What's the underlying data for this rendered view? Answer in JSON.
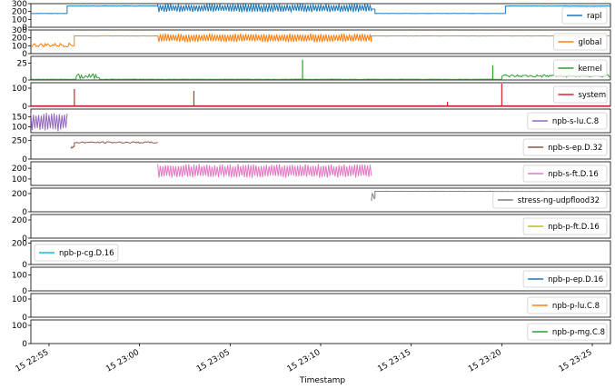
{
  "chart_data": {
    "type": "line",
    "xlabel": "Timestamp",
    "x_ticks": [
      "15 22:55",
      "15 23:00",
      "15 23:05",
      "15 23:10",
      "15 23:15",
      "15 23:20",
      "15 23:25"
    ],
    "x_range_minutes": [
      -1,
      31
    ],
    "panels": [
      {
        "name": "rapl",
        "color": "#1f77b4",
        "ylim": [
          0,
          300
        ],
        "yticks": [
          0,
          100,
          200,
          300
        ],
        "legend": "top-right",
        "segments": [
          {
            "t0": -1.0,
            "t1": 1.0,
            "base": 175,
            "amp": 10,
            "mode": "flat"
          },
          {
            "t0": 1.0,
            "t1": 2.0,
            "base": 270,
            "amp": 6,
            "mode": "flat"
          },
          {
            "t0": 2.0,
            "t1": 6.0,
            "base": 270,
            "amp": 10,
            "mode": "flat"
          },
          {
            "t0": 6.0,
            "t1": 17.8,
            "base": 245,
            "amp": 55,
            "mode": "osc"
          },
          {
            "t0": 17.8,
            "t1": 18.0,
            "base": 230,
            "amp": 5,
            "mode": "flat"
          },
          {
            "t0": 18.0,
            "t1": 25.2,
            "base": 175,
            "amp": 5,
            "mode": "flat"
          },
          {
            "t0": 25.2,
            "t1": 30.2,
            "base": 270,
            "amp": 10,
            "mode": "flat"
          },
          {
            "t0": 30.2,
            "t1": 35.0,
            "base": 270,
            "amp": 5,
            "mode": "flat"
          },
          {
            "t0": 35.2,
            "t1": 35.6,
            "base": 175,
            "amp": 40,
            "mode": "noise"
          },
          {
            "t0": 35.6,
            "t1": 50.0,
            "base": 265,
            "amp": 25,
            "mode": "spiky"
          },
          {
            "t0": 50.0,
            "t1": 55.0,
            "base": 160,
            "amp": 8,
            "mode": "flat"
          },
          {
            "t0": 55.0,
            "t1": 61.0,
            "base": 40,
            "amp": 8,
            "mode": "flat"
          }
        ]
      },
      {
        "name": "global",
        "color": "#ff7f0e",
        "ylim": [
          0,
          300
        ],
        "yticks": [
          0,
          100,
          200,
          300
        ],
        "legend": "top-right",
        "segments": [
          {
            "t0": -1.0,
            "t1": 1.4,
            "base": 110,
            "amp": 25,
            "mode": "noise"
          },
          {
            "t0": 1.4,
            "t1": 2.0,
            "base": 225,
            "amp": 5,
            "mode": "flat"
          },
          {
            "t0": 2.0,
            "t1": 6.0,
            "base": 225,
            "amp": 8,
            "mode": "flat"
          },
          {
            "t0": 6.0,
            "t1": 17.8,
            "base": 200,
            "amp": 55,
            "mode": "osc"
          },
          {
            "t0": 17.8,
            "t1": 25.2,
            "base": 225,
            "amp": 5,
            "mode": "flat"
          },
          {
            "t0": 25.2,
            "t1": 35.0,
            "base": 225,
            "amp": 5,
            "mode": "flat"
          },
          {
            "t0": 35.0,
            "t1": 35.6,
            "base": 120,
            "amp": 40,
            "mode": "noise"
          },
          {
            "t0": 35.6,
            "t1": 50.0,
            "base": 230,
            "amp": 35,
            "mode": "spiky"
          },
          {
            "t0": 50.0,
            "t1": 55.0,
            "base": 120,
            "amp": 10,
            "mode": "flat"
          },
          {
            "t0": 55.0,
            "t1": 61.0,
            "base": 70,
            "amp": 8,
            "mode": "flat"
          }
        ]
      },
      {
        "name": "kernel",
        "color": "#2ca02c",
        "ylim": [
          0,
          35
        ],
        "yticks": [
          0,
          25
        ],
        "legend": "top-right",
        "segments": [
          {
            "t0": -1.0,
            "t1": 1.5,
            "base": 1,
            "amp": 1,
            "mode": "flat"
          },
          {
            "t0": 1.5,
            "t1": 2.8,
            "base": 5,
            "amp": 4,
            "mode": "noise"
          },
          {
            "t0": 2.8,
            "t1": 25.0,
            "base": 1,
            "amp": 1,
            "mode": "flat"
          },
          {
            "t0": 25.0,
            "t1": 35.3,
            "base": 6,
            "amp": 2,
            "mode": "noise"
          },
          {
            "t0": 35.3,
            "t1": 35.8,
            "base": 15,
            "amp": 18,
            "mode": "noise"
          },
          {
            "t0": 35.8,
            "t1": 61.0,
            "base": 1,
            "amp": 1,
            "mode": "flat"
          }
        ]
      },
      {
        "name": "system",
        "color": "#d62728",
        "ylim": [
          0,
          130
        ],
        "yticks": [
          0,
          100
        ],
        "legend": "top-right",
        "segments": [
          {
            "t0": -1.0,
            "t1": 61.0,
            "base": 3,
            "amp": 1,
            "mode": "flat"
          }
        ]
      },
      {
        "name": "npb-s-lu.C.8",
        "color": "#9467bd",
        "ylim": [
          70,
          190
        ],
        "yticks": [
          100,
          150
        ],
        "legend": "top-right",
        "segments": [
          {
            "t0": -1.0,
            "t1": 1.0,
            "base": 125,
            "amp": 50,
            "mode": "osc"
          }
        ]
      },
      {
        "name": "npb-s-ep.D.32",
        "color": "#8c564b",
        "ylim": [
          0,
          320
        ],
        "yticks": [
          0,
          250
        ],
        "legend": "top-right",
        "segments": [
          {
            "t0": 1.2,
            "t1": 1.4,
            "base": 150,
            "amp": 30,
            "mode": "noise"
          },
          {
            "t0": 1.4,
            "t1": 6.0,
            "base": 225,
            "amp": 10,
            "mode": "noise"
          }
        ]
      },
      {
        "name": "npb-s-ft.D.16",
        "color": "#e377c2",
        "ylim": [
          40,
          260
        ],
        "yticks": [
          100,
          200
        ],
        "legend": "right",
        "segments": [
          {
            "t0": 6.0,
            "t1": 17.8,
            "base": 175,
            "amp": 65,
            "mode": "osc"
          }
        ]
      },
      {
        "name": "stress-ng-udpflood32",
        "color": "#7f7f7f",
        "ylim": [
          0,
          260
        ],
        "yticks": [
          0,
          200
        ],
        "legend": "right",
        "segments": [
          {
            "t0": 17.8,
            "t1": 18.0,
            "base": 120,
            "amp": 90,
            "mode": "noise"
          },
          {
            "t0": 18.0,
            "t1": 35.0,
            "base": 225,
            "amp": 5,
            "mode": "flat"
          }
        ]
      },
      {
        "name": "npb-p-ft.D.16",
        "color": "#bcbd22",
        "ylim": [
          0,
          260
        ],
        "yticks": [
          0,
          200
        ],
        "legend": "top-right",
        "segments": [
          {
            "t0": 35.0,
            "t1": 55.0,
            "base": 120,
            "amp": 35,
            "mode": "spiky"
          }
        ]
      },
      {
        "name": "npb-p-cg.D.16",
        "color": "#17becf",
        "ylim": [
          0,
          220
        ],
        "yticks": [
          0,
          200
        ],
        "legend": "top-left",
        "segments": [
          {
            "t0": 35.0,
            "t1": 35.5,
            "base": 20,
            "amp": 15,
            "mode": "noise"
          },
          {
            "t0": 35.5,
            "t1": 40.0,
            "base": 55,
            "amp": 15,
            "mode": "noise"
          },
          {
            "t0": 40.0,
            "t1": 50.0,
            "base": 110,
            "amp": 20,
            "mode": "spiky"
          },
          {
            "t0": 50.0,
            "t1": 55.0,
            "base": 190,
            "amp": 6,
            "mode": "flat"
          },
          {
            "t0": 55.0,
            "t1": 61.0,
            "base": 70,
            "amp": 5,
            "mode": "flat"
          }
        ]
      },
      {
        "name": "npb-p-ep.D.16",
        "color": "#1f77b4",
        "ylim": [
          0,
          150
        ],
        "yticks": [
          0,
          100
        ],
        "legend": "right",
        "segments": [
          {
            "t0": 35.0,
            "t1": 35.5,
            "base": 30,
            "amp": 20,
            "mode": "noise"
          },
          {
            "t0": 35.5,
            "t1": 46.0,
            "base": 90,
            "amp": 20,
            "mode": "noise"
          },
          {
            "t0": 46.0,
            "t1": 47.0,
            "base": 40,
            "amp": 40,
            "mode": "noise"
          }
        ]
      },
      {
        "name": "npb-p-lu.C.8",
        "color": "#ff7f0e",
        "ylim": [
          0,
          130
        ],
        "yticks": [
          0,
          100
        ],
        "legend": "right",
        "segments": [
          {
            "t0": 35.0,
            "t1": 36.0,
            "base": 80,
            "amp": 40,
            "mode": "noise"
          },
          {
            "t0": 36.0,
            "t1": 40.0,
            "base": 40,
            "amp": 12,
            "mode": "noise"
          }
        ]
      },
      {
        "name": "npb-p-mg.C.8",
        "color": "#2ca02c",
        "ylim": [
          0,
          130
        ],
        "yticks": [
          0,
          100
        ],
        "legend": "right",
        "segments": [
          {
            "t0": 35.0,
            "t1": 35.6,
            "base": 60,
            "amp": 40,
            "mode": "noise"
          }
        ]
      }
    ],
    "spikes": [
      {
        "panel": "kernel",
        "t": 14.0,
        "v": 30
      },
      {
        "panel": "kernel",
        "t": 24.5,
        "v": 22
      },
      {
        "panel": "kernel",
        "t": 35.4,
        "v": 33
      },
      {
        "panel": "system",
        "t": 1.4,
        "v": 95
      },
      {
        "panel": "system",
        "t": 8.0,
        "v": 85
      },
      {
        "panel": "system",
        "t": 22.0,
        "v": 25
      },
      {
        "panel": "system",
        "t": 25.0,
        "v": 125
      },
      {
        "panel": "system",
        "t": 35.2,
        "v": 85
      },
      {
        "panel": "system",
        "t": 36.0,
        "v": 80
      },
      {
        "panel": "system",
        "t": 55.5,
        "v": 20
      }
    ]
  }
}
